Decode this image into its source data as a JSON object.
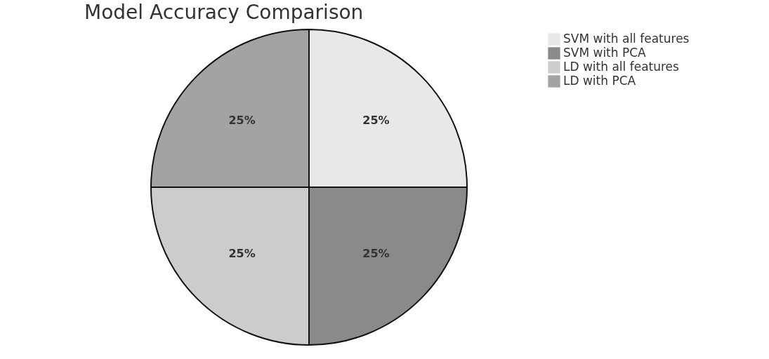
{
  "chart_data": {
    "type": "pie",
    "title": "Model Accuracy Comparison",
    "categories": [
      "SVM with all features",
      "SVM with PCA",
      "LD with all features",
      "LD with PCA"
    ],
    "values": [
      25,
      25,
      25,
      25
    ],
    "colors": [
      "#e8e8e8",
      "#8a8a8a",
      "#cccccc",
      "#a3a3a3"
    ],
    "value_labels": [
      "25%",
      "25%",
      "25%",
      "25%"
    ],
    "legend": "right"
  }
}
